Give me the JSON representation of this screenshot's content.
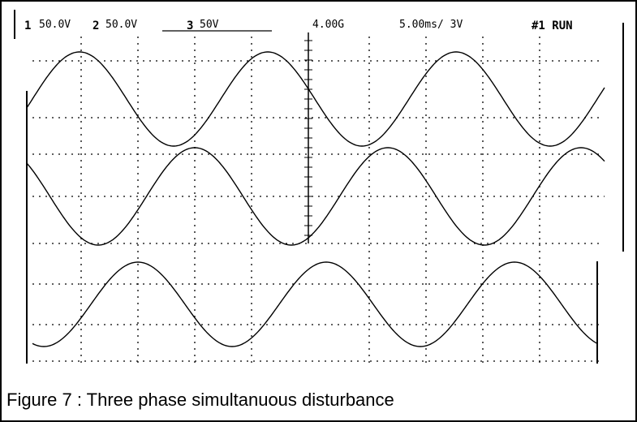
{
  "header": [
    "1",
    "50.0V",
    "2",
    "50.0V",
    "3",
    "50V",
    "4.00G",
    "5.00ms/ 3V",
    "#1 RUN"
  ],
  "caption": "Figure 7 : Three phase simultanuous disturbance"
}
